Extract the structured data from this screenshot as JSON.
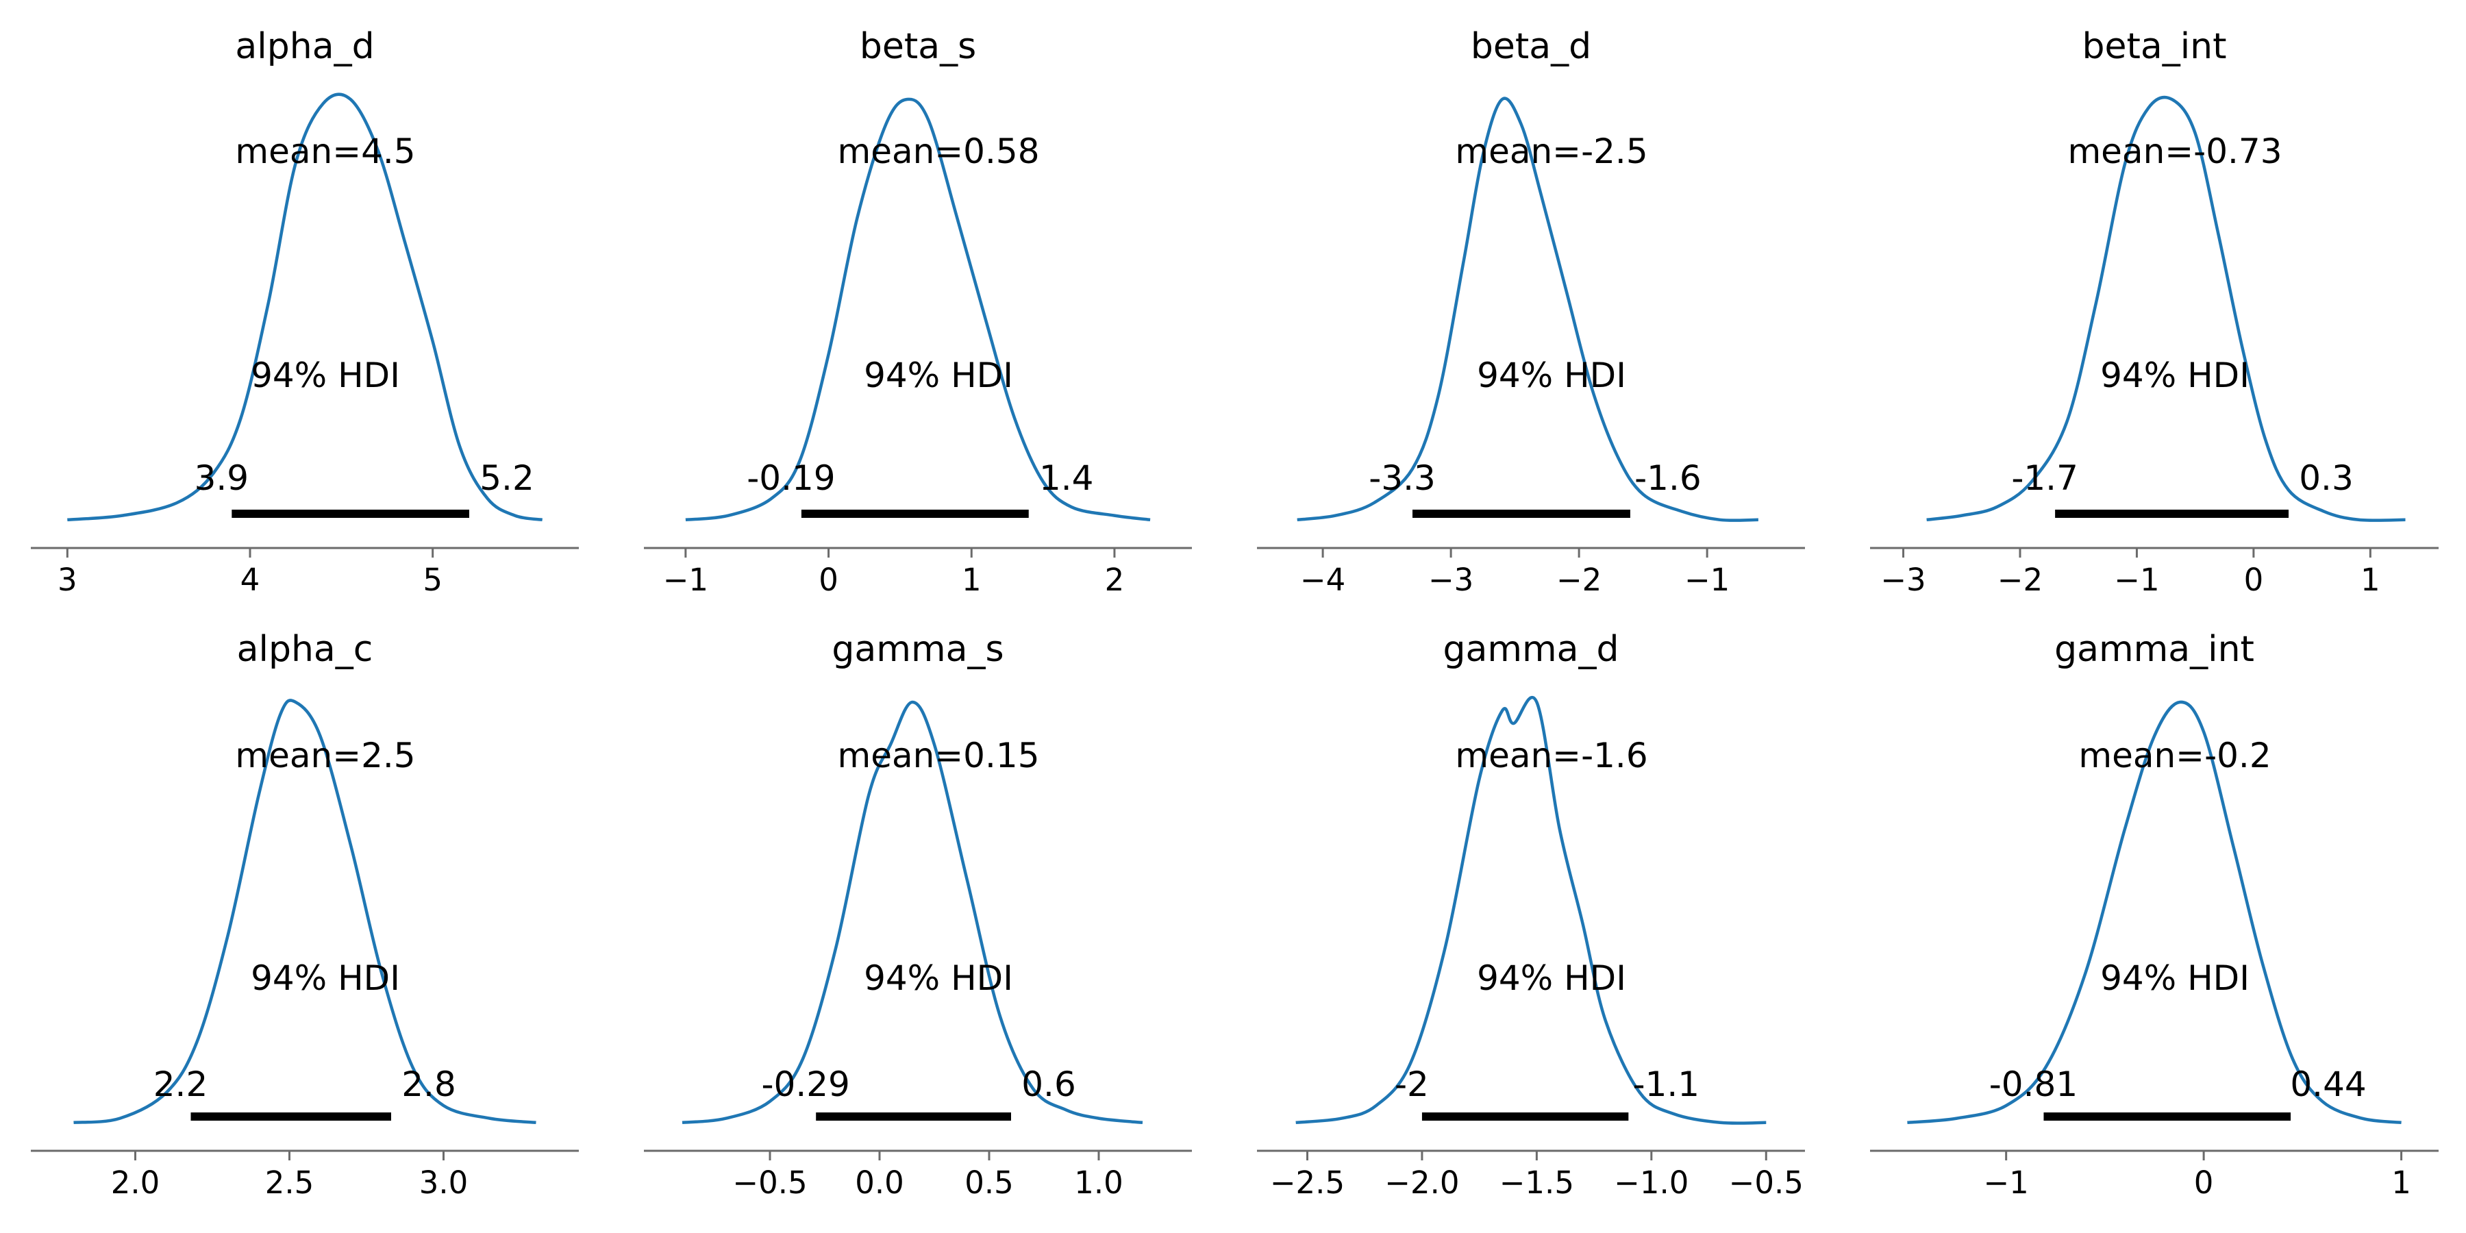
{
  "colors": {
    "curve": "#1f77b4",
    "hdi": "#000000",
    "axis": "#6b6b6b"
  },
  "chart_data": [
    {
      "type": "area",
      "title": "alpha_d",
      "mean_label": "mean=4.5",
      "hdi_label": "94% HDI",
      "hdi_low": 3.9,
      "hdi_high": 5.2,
      "hdi_low_label": "3.9",
      "hdi_high_label": "5.2",
      "xlim": [
        2.95,
        5.65
      ],
      "x": [
        3.0,
        3.3,
        3.6,
        3.8,
        3.95,
        4.1,
        4.25,
        4.4,
        4.55,
        4.7,
        4.85,
        5.0,
        5.15,
        5.3,
        5.45,
        5.6
      ],
      "y": [
        0.01,
        0.02,
        0.05,
        0.12,
        0.25,
        0.52,
        0.85,
        0.99,
        1.0,
        0.88,
        0.66,
        0.43,
        0.18,
        0.06,
        0.02,
        0.01
      ],
      "xticks": [
        3,
        4,
        5
      ],
      "xtick_labels": [
        "3",
        "4",
        "5"
      ]
    },
    {
      "type": "area",
      "title": "beta_s",
      "mean_label": "mean=0.58",
      "hdi_label": "94% HDI",
      "hdi_low": -0.19,
      "hdi_high": 1.4,
      "hdi_low_label": "-0.19",
      "hdi_high_label": "1.4",
      "xlim": [
        -1.1,
        2.35
      ],
      "x": [
        -1.0,
        -0.7,
        -0.4,
        -0.2,
        0.0,
        0.2,
        0.4,
        0.55,
        0.7,
        0.9,
        1.1,
        1.3,
        1.5,
        1.7,
        2.0,
        2.25
      ],
      "y": [
        0.01,
        0.02,
        0.06,
        0.15,
        0.4,
        0.72,
        0.94,
        1.0,
        0.95,
        0.72,
        0.48,
        0.25,
        0.1,
        0.04,
        0.02,
        0.01
      ],
      "xticks": [
        -1,
        0,
        1,
        2
      ],
      "xtick_labels": [
        "−1",
        "0",
        "1",
        "2"
      ]
    },
    {
      "type": "area",
      "title": "beta_d",
      "mean_label": "mean=-2.5",
      "hdi_label": "94% HDI",
      "hdi_low": -3.3,
      "hdi_high": -1.6,
      "hdi_low_label": "-3.3",
      "hdi_high_label": "-1.6",
      "xlim": [
        -4.3,
        -0.45
      ],
      "x": [
        -4.2,
        -3.9,
        -3.6,
        -3.3,
        -3.1,
        -2.9,
        -2.75,
        -2.6,
        -2.45,
        -2.3,
        -2.1,
        -1.9,
        -1.7,
        -1.5,
        -1.2,
        -0.9,
        -0.6
      ],
      "y": [
        0.01,
        0.02,
        0.05,
        0.13,
        0.3,
        0.62,
        0.87,
        1.0,
        0.94,
        0.78,
        0.55,
        0.32,
        0.16,
        0.07,
        0.03,
        0.01,
        0.01
      ],
      "xticks": [
        -4,
        -3,
        -2,
        -1
      ],
      "xtick_labels": [
        "−4",
        "−3",
        "−2",
        "−1"
      ]
    },
    {
      "type": "area",
      "title": "beta_int",
      "mean_label": "mean=-0.73",
      "hdi_label": "94% HDI",
      "hdi_low": -1.7,
      "hdi_high": 0.3,
      "hdi_low_label": "-1.7",
      "hdi_high_label": "0.3",
      "xlim": [
        -3.05,
        1.35
      ],
      "x": [
        -2.8,
        -2.5,
        -2.2,
        -1.9,
        -1.6,
        -1.35,
        -1.1,
        -0.9,
        -0.7,
        -0.5,
        -0.3,
        -0.1,
        0.1,
        0.3,
        0.6,
        0.9,
        1.3
      ],
      "y": [
        0.01,
        0.02,
        0.04,
        0.1,
        0.24,
        0.52,
        0.85,
        0.98,
        1.0,
        0.92,
        0.68,
        0.42,
        0.2,
        0.08,
        0.03,
        0.01,
        0.01
      ],
      "xticks": [
        -3,
        -2,
        -1,
        0,
        1
      ],
      "xtick_labels": [
        "−3",
        "−2",
        "−1",
        "0",
        "1"
      ]
    },
    {
      "type": "area",
      "title": "alpha_c",
      "mean_label": "mean=2.5",
      "hdi_label": "94% HDI",
      "hdi_low": 2.18,
      "hdi_high": 2.83,
      "hdi_low_label": "2.2",
      "hdi_high_label": "2.8",
      "xlim": [
        1.75,
        3.35
      ],
      "x": [
        1.8,
        1.95,
        2.1,
        2.2,
        2.3,
        2.4,
        2.47,
        2.52,
        2.6,
        2.7,
        2.8,
        2.9,
        3.0,
        3.15,
        3.3
      ],
      "y": [
        0.01,
        0.02,
        0.08,
        0.2,
        0.45,
        0.78,
        0.97,
        1.0,
        0.92,
        0.66,
        0.36,
        0.14,
        0.05,
        0.02,
        0.01
      ],
      "xticks": [
        2.0,
        2.5,
        3.0
      ],
      "xtick_labels": [
        "2.0",
        "2.5",
        "3.0"
      ]
    },
    {
      "type": "area",
      "title": "gamma_s",
      "mean_label": "mean=0.15",
      "hdi_label": "94% HDI",
      "hdi_low": -0.29,
      "hdi_high": 0.6,
      "hdi_low_label": "-0.29",
      "hdi_high_label": "0.6",
      "xlim": [
        -0.95,
        1.3
      ],
      "x": [
        -0.9,
        -0.7,
        -0.5,
        -0.35,
        -0.2,
        -0.05,
        0.05,
        0.15,
        0.25,
        0.4,
        0.55,
        0.7,
        0.85,
        1.0,
        1.2
      ],
      "y": [
        0.01,
        0.02,
        0.06,
        0.16,
        0.42,
        0.78,
        0.9,
        1.0,
        0.9,
        0.58,
        0.26,
        0.09,
        0.04,
        0.02,
        0.01
      ],
      "xticks": [
        -0.5,
        0.0,
        0.5,
        1.0
      ],
      "xtick_labels": [
        "−0.5",
        "0.0",
        "0.5",
        "1.0"
      ]
    },
    {
      "type": "area",
      "title": "gamma_d",
      "mean_label": "mean=-1.6",
      "hdi_label": "94% HDI",
      "hdi_low": -2.0,
      "hdi_high": -1.1,
      "hdi_low_label": "-2",
      "hdi_high_label": "-1.1",
      "xlim": [
        -2.6,
        -0.45
      ],
      "x": [
        -2.55,
        -2.35,
        -2.2,
        -2.05,
        -1.9,
        -1.75,
        -1.65,
        -1.6,
        -1.5,
        -1.4,
        -1.3,
        -1.2,
        -1.05,
        -0.9,
        -0.7,
        -0.5
      ],
      "y": [
        0.01,
        0.02,
        0.05,
        0.15,
        0.42,
        0.82,
        0.98,
        0.95,
        1.0,
        0.7,
        0.48,
        0.25,
        0.08,
        0.03,
        0.01,
        0.01
      ],
      "xticks": [
        -2.5,
        -2.0,
        -1.5,
        -1.0,
        -0.5
      ],
      "xtick_labels": [
        "−2.5",
        "−2.0",
        "−1.5",
        "−1.0",
        "−0.5"
      ]
    },
    {
      "type": "area",
      "title": "gamma_int",
      "mean_label": "mean=-0.2",
      "hdi_label": "94% HDI",
      "hdi_low": -0.81,
      "hdi_high": 0.44,
      "hdi_low_label": "-0.81",
      "hdi_high_label": "0.44",
      "xlim": [
        -1.55,
        1.05
      ],
      "x": [
        -1.5,
        -1.25,
        -1.0,
        -0.8,
        -0.6,
        -0.4,
        -0.25,
        -0.12,
        0.0,
        0.15,
        0.3,
        0.45,
        0.6,
        0.8,
        1.0
      ],
      "y": [
        0.01,
        0.02,
        0.05,
        0.14,
        0.36,
        0.7,
        0.92,
        1.0,
        0.93,
        0.66,
        0.38,
        0.16,
        0.06,
        0.02,
        0.01
      ],
      "xticks": [
        -1,
        0,
        1
      ],
      "xtick_labels": [
        "−1",
        "0",
        "1"
      ]
    }
  ]
}
